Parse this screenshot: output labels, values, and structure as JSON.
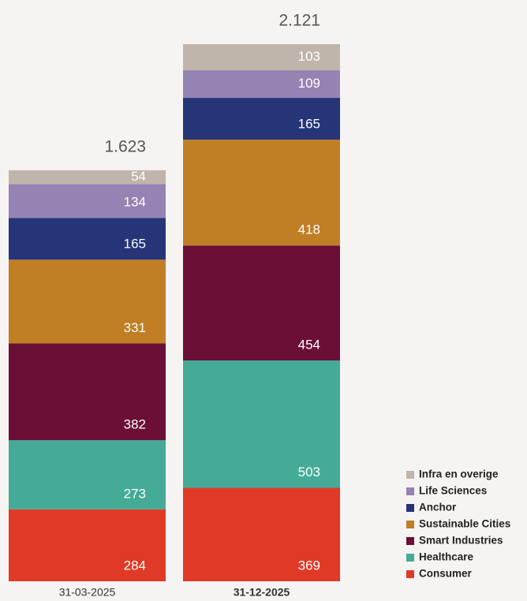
{
  "chart_data": {
    "type": "stacked-bar",
    "categories": [
      "31-03-2025",
      "31-12-2025"
    ],
    "highlight_category": 1,
    "totals": [
      {
        "value": 1623,
        "label": "1.623"
      },
      {
        "value": 2121,
        "label": "2.121"
      }
    ],
    "series": [
      {
        "name": "Consumer",
        "color": "#e03a26",
        "values": [
          284,
          369
        ]
      },
      {
        "name": "Healthcare",
        "color": "#45ab97",
        "values": [
          273,
          503
        ]
      },
      {
        "name": "Smart Industries",
        "color": "#6b0f36",
        "values": [
          382,
          454
        ]
      },
      {
        "name": "Sustainable Cities",
        "color": "#c07f25",
        "values": [
          331,
          418
        ]
      },
      {
        "name": "Anchor",
        "color": "#263478",
        "values": [
          165,
          165
        ]
      },
      {
        "name": "Life Sciences",
        "color": "#9583b4",
        "values": [
          134,
          109
        ]
      },
      {
        "name": "Infra en overige",
        "color": "#bfb5aa",
        "values": [
          54,
          103
        ]
      }
    ]
  }
}
